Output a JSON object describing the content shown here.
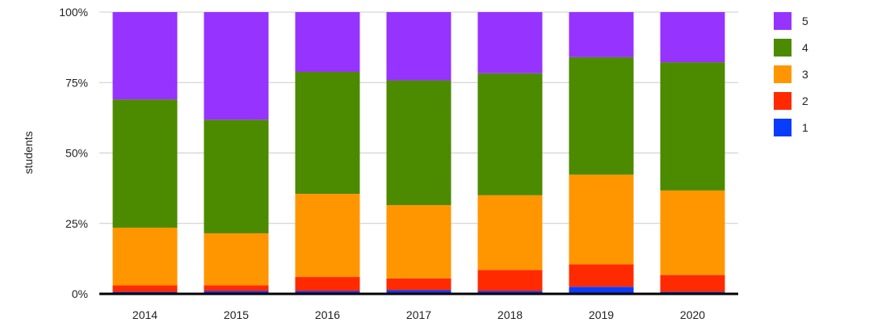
{
  "chart_data": {
    "type": "bar",
    "stacked": true,
    "normalized_percent": true,
    "categories": [
      "2014",
      "2015",
      "2016",
      "2017",
      "2018",
      "2019",
      "2020"
    ],
    "ylabel": "students",
    "xlabel": "",
    "ylim": [
      0,
      100
    ],
    "yticks": [
      "0%",
      "25%",
      "50%",
      "75%",
      "100%"
    ],
    "ytick_values": [
      0,
      25,
      50,
      75,
      100
    ],
    "grid": true,
    "legend_position": "right",
    "series": [
      {
        "name": "1",
        "color": "#0a3cff",
        "values": [
          0.7,
          1.0,
          1.0,
          1.3,
          1.0,
          2.5,
          0.7
        ]
      },
      {
        "name": "2",
        "color": "#ff2a00",
        "values": [
          2.3,
          2.0,
          5.0,
          4.2,
          7.5,
          8.0,
          6.0
        ]
      },
      {
        "name": "3",
        "color": "#ff9600",
        "values": [
          20.5,
          18.5,
          29.5,
          26.0,
          26.5,
          31.8,
          30.0
        ]
      },
      {
        "name": "4",
        "color": "#4c8a00",
        "values": [
          45.5,
          40.3,
          43.3,
          44.3,
          43.3,
          41.7,
          45.5
        ]
      },
      {
        "name": "5",
        "color": "#9633ff",
        "values": [
          31.0,
          38.2,
          21.2,
          24.2,
          21.7,
          16.0,
          17.8
        ]
      }
    ]
  }
}
